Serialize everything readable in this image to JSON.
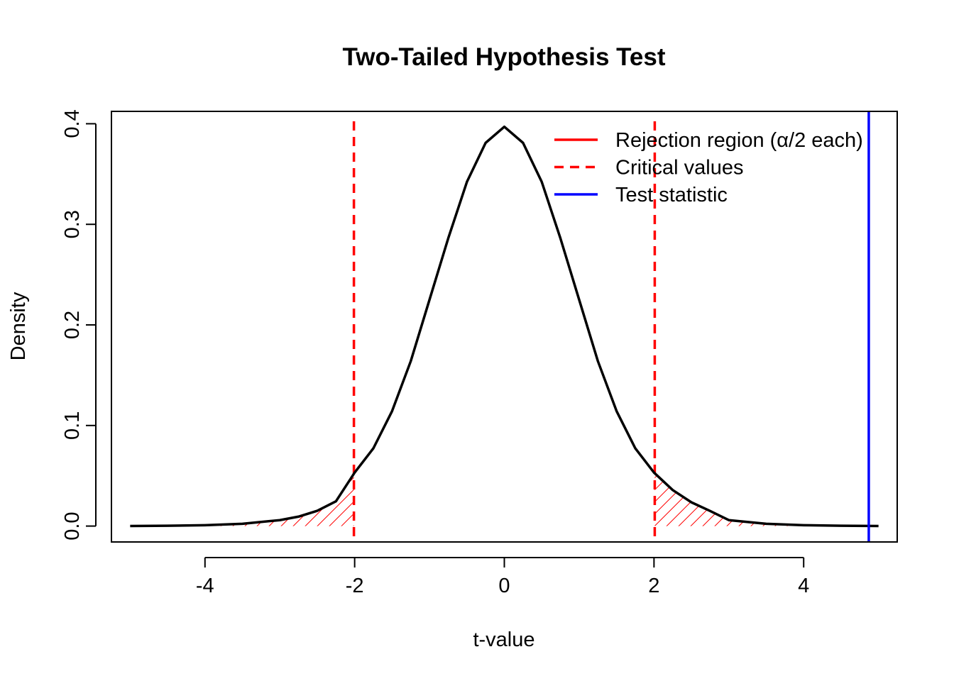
{
  "chart_data": {
    "type": "line",
    "title": "Two-Tailed Hypothesis Test",
    "xlabel": "t-value",
    "ylabel": "Density",
    "xlim": [
      -5.25,
      5.25
    ],
    "ylim": [
      -0.0158,
      0.4123
    ],
    "x_ticks": [
      -4,
      -2,
      0,
      2,
      4
    ],
    "x_tick_labels": [
      "-4",
      "-2",
      "0",
      "2",
      "4"
    ],
    "y_ticks": [
      0.0,
      0.1,
      0.2,
      0.3,
      0.4
    ],
    "y_tick_labels": [
      "0.0",
      "0.1",
      "0.2",
      "0.3",
      "0.4"
    ],
    "grid": false,
    "legend_position": "top-right",
    "legend": [
      {
        "label": "Rejection region (α/2 each)",
        "color": "#ff0000",
        "style": "solid"
      },
      {
        "label": "Critical values",
        "color": "#ff0000",
        "style": "dashed"
      },
      {
        "label": "Test statistic",
        "color": "#0000ff",
        "style": "solid"
      }
    ],
    "curve": {
      "color": "#000000",
      "points": [
        [
          -5.0,
          0.0001
        ],
        [
          -4.5,
          0.0003
        ],
        [
          -4.0,
          0.0009
        ],
        [
          -3.5,
          0.0023
        ],
        [
          -3.0,
          0.0059
        ],
        [
          -2.75,
          0.0094
        ],
        [
          -2.5,
          0.0152
        ],
        [
          -2.25,
          0.0246
        ],
        [
          -2.0,
          0.0532
        ],
        [
          -1.75,
          0.0773
        ],
        [
          -1.5,
          0.1143
        ],
        [
          -1.25,
          0.164
        ],
        [
          -1.0,
          0.225
        ],
        [
          -0.75,
          0.286
        ],
        [
          -0.5,
          0.3422
        ],
        [
          -0.25,
          0.381
        ],
        [
          0.0,
          0.397
        ],
        [
          0.25,
          0.381
        ],
        [
          0.5,
          0.3422
        ],
        [
          0.75,
          0.286
        ],
        [
          1.0,
          0.225
        ],
        [
          1.25,
          0.164
        ],
        [
          1.5,
          0.1143
        ],
        [
          1.75,
          0.0773
        ],
        [
          2.0,
          0.0532
        ],
        [
          2.25,
          0.0358
        ],
        [
          2.5,
          0.0236
        ],
        [
          2.75,
          0.015
        ],
        [
          3.0,
          0.0059
        ],
        [
          3.5,
          0.0023
        ],
        [
          4.0,
          0.0009
        ],
        [
          4.5,
          0.0003
        ],
        [
          5.0,
          0.0001
        ]
      ]
    },
    "critical_values": [
      -2.01,
      2.01
    ],
    "critical_color": "#ff0000",
    "test_statistic": 4.87,
    "test_statistic_color": "#0000ff",
    "rejection_color": "#ff0000"
  }
}
